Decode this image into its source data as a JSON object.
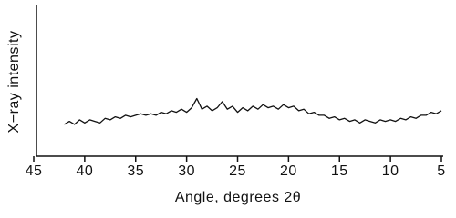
{
  "chart_data": {
    "type": "line",
    "xlabel": "Angle, degrees 2θ",
    "ylabel": "X−ray intensity",
    "xlim": [
      45,
      5
    ],
    "xticks": [
      45,
      40,
      35,
      30,
      25,
      20,
      15,
      10,
      5
    ],
    "ylim": [
      0,
      100
    ],
    "yticks": [],
    "x": [
      42,
      41.5,
      41,
      40.5,
      40,
      39.5,
      39,
      38.5,
      38,
      37.5,
      37,
      36.5,
      36,
      35.5,
      35,
      34.5,
      34,
      33.5,
      33,
      32.5,
      32,
      31.5,
      31,
      30.5,
      30,
      29.5,
      29,
      28.5,
      28,
      27.5,
      27,
      26.5,
      26,
      25.5,
      25,
      24.5,
      24,
      23.5,
      23,
      22.5,
      22,
      21.5,
      21,
      20.5,
      20,
      19.5,
      19,
      18.5,
      18,
      17.5,
      17,
      16.5,
      16,
      15.5,
      15,
      14.5,
      14,
      13.5,
      13,
      12.5,
      12,
      11.5,
      11,
      10.5,
      10,
      9.5,
      9,
      8.5,
      8,
      7.5,
      7,
      6.5,
      6,
      5.5,
      5
    ],
    "series": [
      {
        "color": "#111111",
        "values": [
          21,
          23,
          21,
          24,
          22,
          24,
          23,
          22,
          25,
          24,
          26,
          25,
          27,
          26,
          27,
          28,
          27,
          28,
          27,
          29,
          28,
          30,
          29,
          31,
          29,
          32,
          38,
          31,
          33,
          30,
          32,
          36,
          31,
          33,
          29,
          32,
          30,
          33,
          31,
          34,
          32,
          33,
          31,
          34,
          32,
          33,
          30,
          31,
          28,
          29,
          27,
          27,
          25,
          26,
          24,
          25,
          23,
          24,
          22,
          24,
          23,
          22,
          24,
          23,
          24,
          23,
          25,
          24,
          26,
          25,
          27,
          27,
          29,
          28,
          30
        ]
      }
    ]
  }
}
